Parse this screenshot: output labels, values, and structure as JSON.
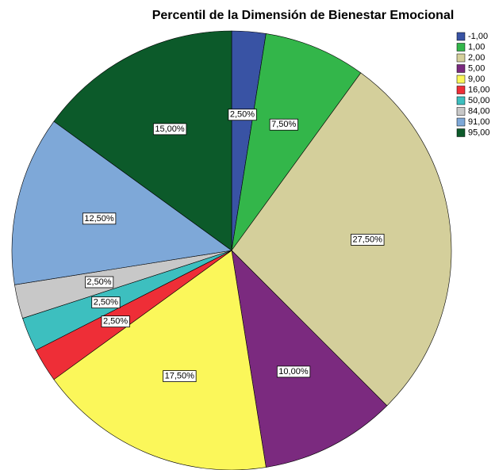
{
  "chart_data": {
    "type": "pie",
    "title": "Percentil de la Dimensión de Bienestar Emocional",
    "categories": [
      "-1,00",
      "1,00",
      "2,00",
      "5,00",
      "9,00",
      "16,00",
      "50,00",
      "84,00",
      "91,00",
      "95,00"
    ],
    "values": [
      2.5,
      7.5,
      27.5,
      10,
      17.5,
      2.5,
      2.5,
      2.5,
      12.5,
      15
    ],
    "value_labels": [
      "2,50%",
      "7,50%",
      "27,50%",
      "10,00%",
      "17,50%",
      "2,50%",
      "2,50%",
      "2,50%",
      "12,50%",
      "15,00%"
    ],
    "colors": [
      "#3953a4",
      "#33b64a",
      "#d4cf9b",
      "#7b2a7f",
      "#fbf75a",
      "#ee2e37",
      "#3dbfbf",
      "#c8c8c8",
      "#7ea8d8",
      "#0c5a2a"
    ],
    "legend": "top-right"
  }
}
